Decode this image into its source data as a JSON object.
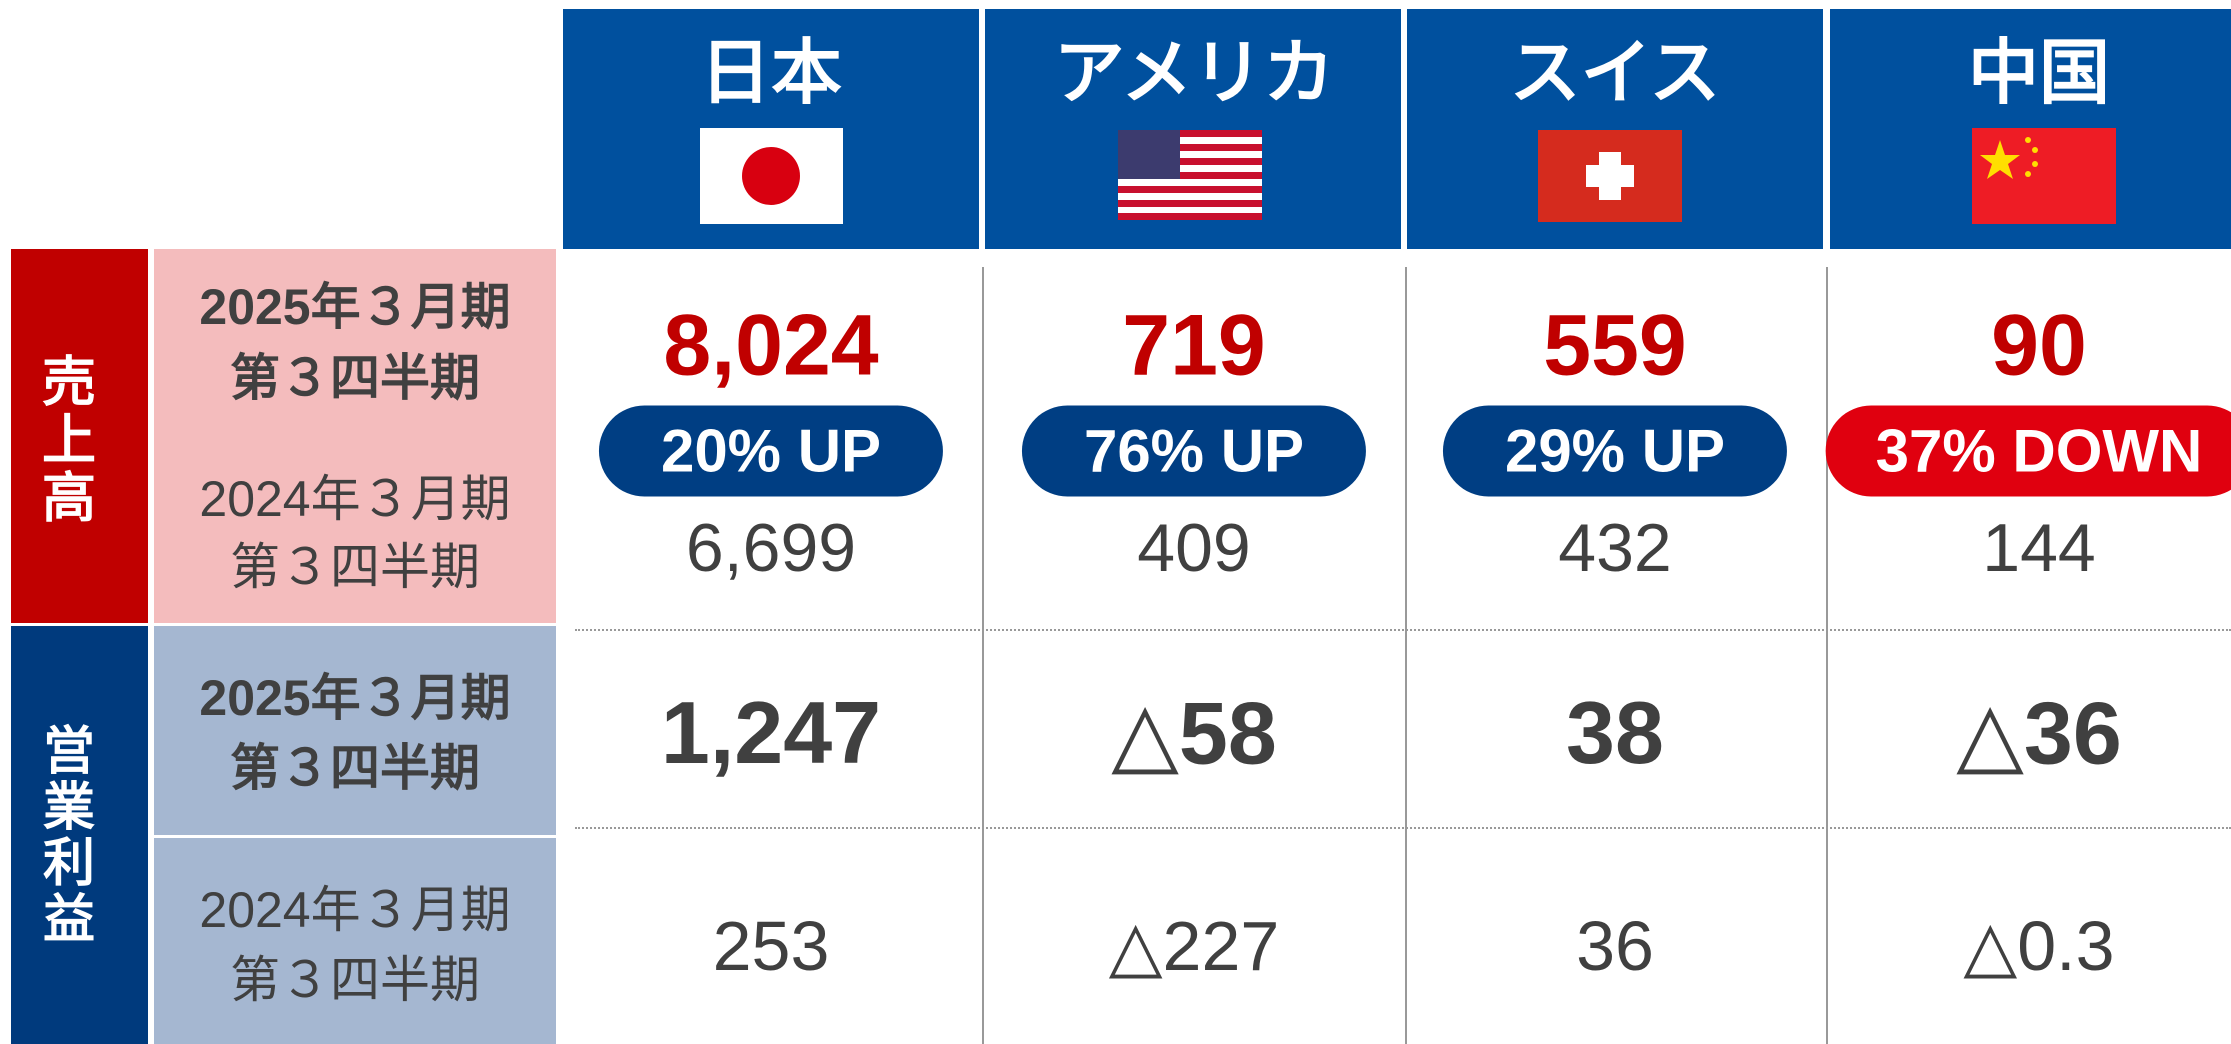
{
  "columns": [
    "日本",
    "アメリカ",
    "スイス",
    "中国"
  ],
  "sales": {
    "label": "売上高",
    "current_period": [
      "2025年３月期",
      "第３四半期"
    ],
    "previous_period": [
      "2024年３月期",
      "第３四半期"
    ],
    "current": [
      "8,024",
      "719",
      "559",
      "90"
    ],
    "change": [
      "20% UP",
      "76% UP",
      "29% UP",
      "37% DOWN"
    ],
    "previous": [
      "6,699",
      "409",
      "432",
      "144"
    ]
  },
  "operating_profit": {
    "label": "営業利益",
    "current_period": [
      "2025年３月期",
      "第３四半期"
    ],
    "previous_period": [
      "2024年３月期",
      "第３四半期"
    ],
    "current": [
      "1,247",
      "△58",
      "38",
      "△36"
    ],
    "previous": [
      "253",
      "△227",
      "36",
      "△0.3"
    ]
  }
}
